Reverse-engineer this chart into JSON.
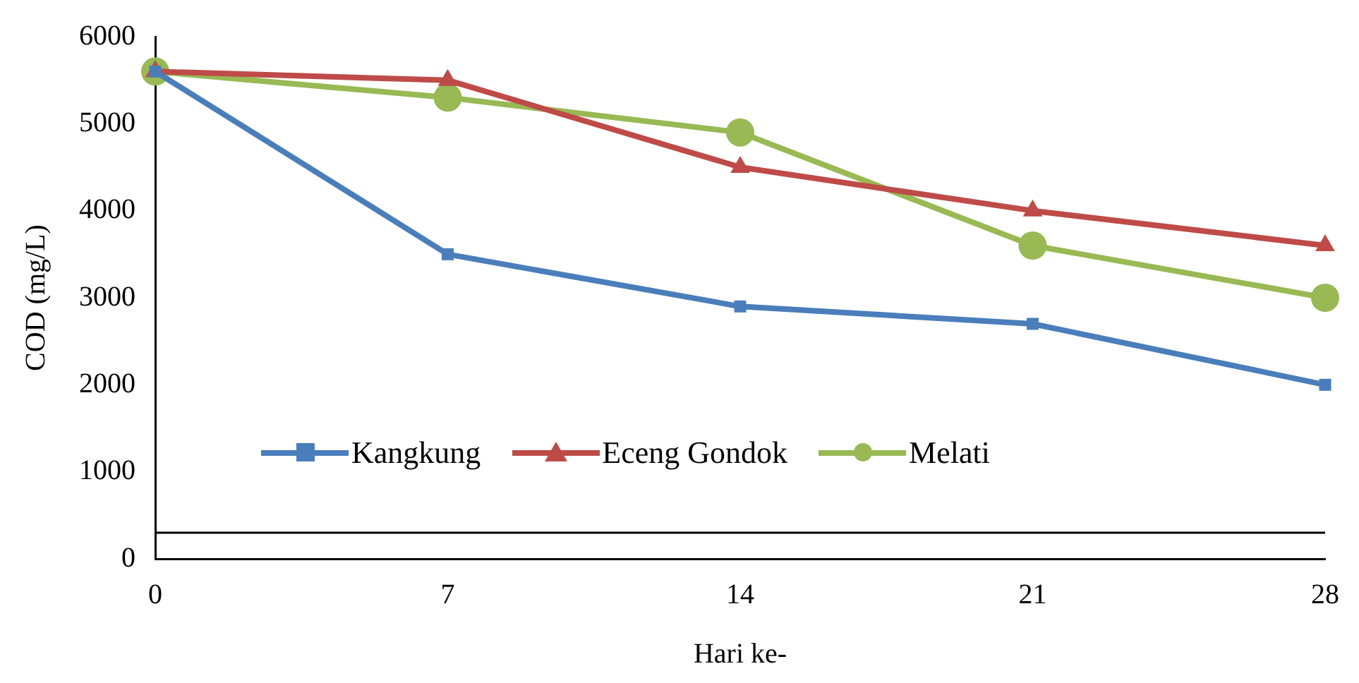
{
  "chart_data": {
    "type": "line",
    "xlabel": "Hari ke-",
    "ylabel": "COD (mg/L)",
    "categories": [
      "0",
      "7",
      "14",
      "21",
      "28"
    ],
    "series": [
      {
        "name": "Kangkung",
        "color": "#4a7ebb",
        "marker": "square",
        "values": [
          5600,
          3500,
          2900,
          2700,
          2000
        ]
      },
      {
        "name": "Eceng Gondok",
        "color": "#be4b48",
        "marker": "triangle",
        "values": [
          5600,
          5500,
          4500,
          4000,
          3600
        ]
      },
      {
        "name": "Melati",
        "color": "#98b954",
        "marker": "circle",
        "values": [
          5600,
          5300,
          4900,
          3600,
          3000
        ]
      }
    ],
    "ylim": [
      0,
      6000
    ],
    "yticks": [
      0,
      1000,
      2000,
      3000,
      4000,
      5000,
      6000
    ],
    "ref_lines": [
      {
        "axis": "y",
        "value": 300,
        "color": "#000000",
        "line_style": "solid"
      }
    ],
    "grid": false,
    "legend": "bottom left",
    "line_style": "solid"
  }
}
